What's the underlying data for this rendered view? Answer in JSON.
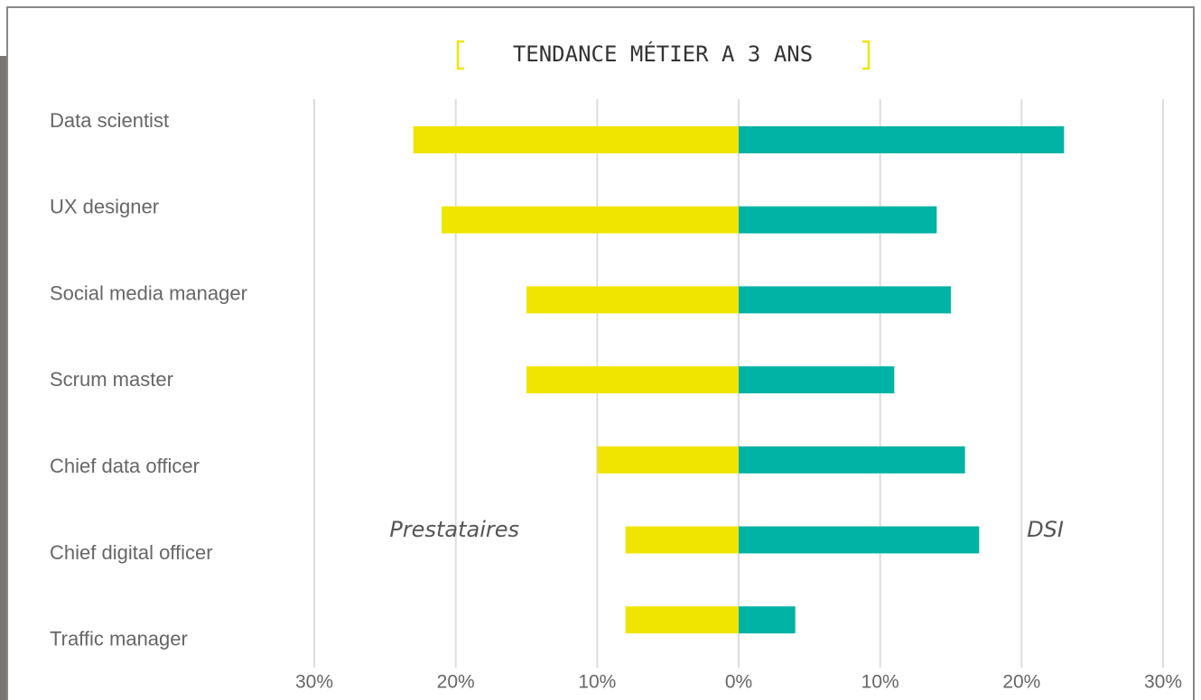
{
  "chart_data": {
    "type": "diverging_bar",
    "title": "TENDANCE MÉTIER A 3 ANS",
    "categories": [
      "Data scientist",
      "UX designer",
      "Social media manager",
      "Scrum master",
      "Chief data officer",
      "Chief digital officer",
      "Traffic manager"
    ],
    "series": [
      {
        "name": "Prestataires",
        "color": "#f0e500",
        "values": [
          -23,
          -21,
          -15,
          -15,
          -10,
          -8,
          -8
        ]
      },
      {
        "name": "DSI",
        "color": "#00b3a4",
        "values": [
          23,
          14,
          15,
          11,
          16,
          17,
          4
        ]
      }
    ],
    "xlim": [
      -30,
      30
    ],
    "xticks": [
      {
        "value": -30,
        "label": "30%"
      },
      {
        "value": -20,
        "label": "20%"
      },
      {
        "value": -10,
        "label": "10%"
      },
      {
        "value": 0,
        "label": "0%"
      },
      {
        "value": 10,
        "label": "10%"
      },
      {
        "value": 20,
        "label": "20%"
      },
      {
        "value": 30,
        "label": "30%"
      }
    ],
    "grid": true
  }
}
